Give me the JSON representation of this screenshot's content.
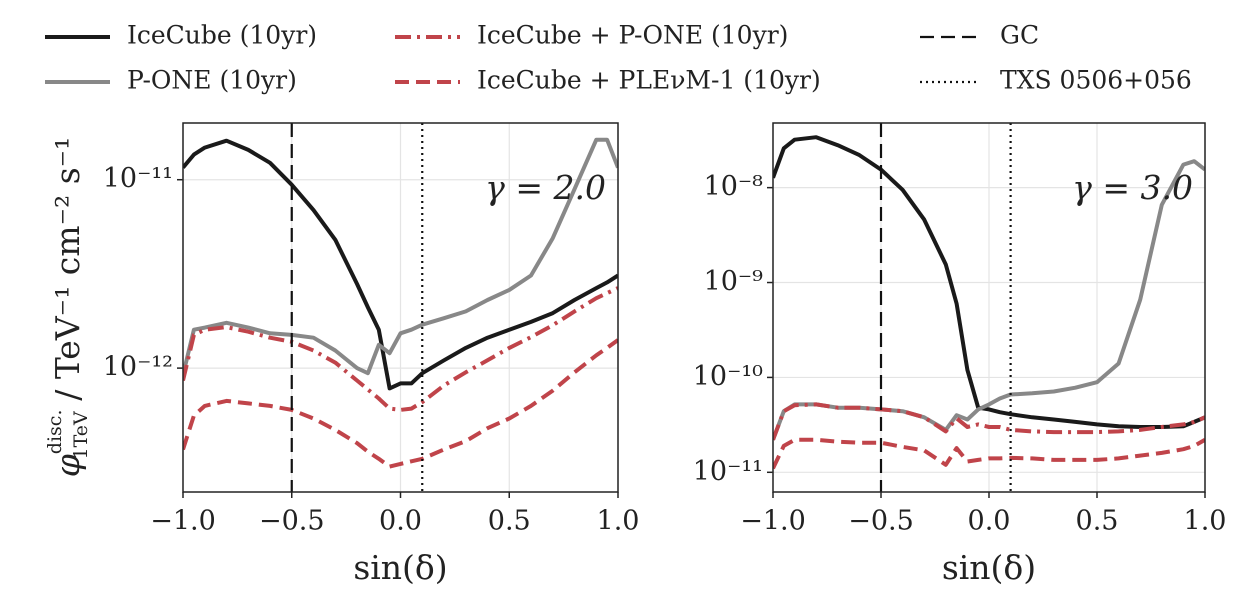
{
  "chart_data": [
    {
      "type": "line",
      "log_y": true,
      "grid": true,
      "ylabel": {
        "symbol": "φ",
        "superscript": "disc.",
        "subscript": "1TeV",
        "units": " / TeV⁻¹ cm⁻² s⁻¹"
      },
      "xlabel": "sin(δ)",
      "annotation": "γ = 2.0",
      "x": [
        -1.0,
        -0.95,
        -0.9,
        -0.8,
        -0.7,
        -0.6,
        -0.5,
        -0.4,
        -0.3,
        -0.2,
        -0.15,
        -0.1,
        -0.05,
        0.0,
        0.05,
        0.1,
        0.2,
        0.3,
        0.4,
        0.5,
        0.6,
        0.7,
        0.8,
        0.9,
        0.95,
        1.0
      ],
      "xlim": [
        -1,
        1
      ],
      "xticks": [
        {
          "value": -1,
          "label": "−1.0"
        },
        {
          "value": -0.5,
          "label": "−0.5"
        },
        {
          "value": 0,
          "label": "0.0"
        },
        0.5,
        {
          "value": 1,
          "label": "1.0"
        }
      ],
      "ylim": [
        2.2e-13,
        2e-11
      ],
      "yticks": [
        {
          "value": 1e-12,
          "label": "10⁻¹²"
        },
        {
          "value": 1e-11,
          "label": "10⁻¹¹"
        }
      ],
      "series": [
        {
          "name": "IceCube (10yr)",
          "color": "#1a1a1a",
          "style": "solid",
          "values": [
            1.16e-11,
            1.36e-11,
            1.48e-11,
            1.61e-11,
            1.44e-11,
            1.23e-11,
            9.4e-12,
            6.9e-12,
            4.8e-12,
            2.8e-12,
            2.1e-12,
            1.6e-12,
            7.8e-13,
            8.3e-13,
            8.3e-13,
            9.4e-13,
            1.1e-12,
            1.28e-12,
            1.45e-12,
            1.6e-12,
            1.76e-12,
            1.96e-12,
            2.3e-12,
            2.66e-12,
            2.85e-12,
            3.1e-12
          ]
        },
        {
          "name": "P-ONE (10yr)",
          "color": "#888888",
          "style": "solid",
          "values": [
            9.2e-13,
            1.6e-12,
            1.64e-12,
            1.74e-12,
            1.64e-12,
            1.53e-12,
            1.5e-12,
            1.45e-12,
            1.24e-12,
            1e-12,
            9.4e-13,
            1.33e-12,
            1.2e-12,
            1.53e-12,
            1.6e-12,
            1.7e-12,
            1.84e-12,
            2e-12,
            2.3e-12,
            2.6e-12,
            3.1e-12,
            4.9e-12,
            8.9e-12,
            1.63e-11,
            1.63e-11,
            1.16e-11
          ]
        },
        {
          "name": "IceCube + P-ONE (10yr)",
          "color": "#c0444a",
          "style": "dashdot",
          "values": [
            8.6e-13,
            1.5e-12,
            1.6e-12,
            1.65e-12,
            1.56e-12,
            1.45e-12,
            1.38e-12,
            1.24e-12,
            1.07e-12,
            8.6e-13,
            7.7e-13,
            6.9e-13,
            6.1e-13,
            6e-13,
            6.1e-13,
            6.6e-13,
            8.1e-13,
            9.5e-13,
            1.1e-12,
            1.28e-12,
            1.46e-12,
            1.69e-12,
            2e-12,
            2.35e-12,
            2.5e-12,
            2.66e-12
          ]
        },
        {
          "name": "IceCube + PLEνM-1 (10yr)",
          "color": "#c0444a",
          "style": "dashed",
          "values": [
            3.7e-13,
            5.6e-13,
            6.3e-13,
            6.7e-13,
            6.5e-13,
            6.3e-13,
            6e-13,
            5.4e-13,
            4.7e-13,
            4e-13,
            3.6e-13,
            3.3e-13,
            3e-13,
            3.1e-13,
            3.2e-13,
            3.3e-13,
            3.7e-13,
            4.1e-13,
            4.8e-13,
            5.4e-13,
            6.3e-13,
            7.6e-13,
            9.5e-13,
            1.17e-12,
            1.28e-12,
            1.41e-12
          ]
        }
      ],
      "vlines": [
        {
          "name": "GC",
          "x": -0.5,
          "style": "dashed"
        },
        {
          "name": "TXS 0506+056",
          "x": 0.1,
          "style": "dotted"
        }
      ]
    },
    {
      "type": "line",
      "log_y": true,
      "grid": true,
      "xlabel": "sin(δ)",
      "annotation": "γ = 3.0",
      "x": [
        -1.0,
        -0.95,
        -0.9,
        -0.8,
        -0.7,
        -0.6,
        -0.5,
        -0.4,
        -0.3,
        -0.2,
        -0.15,
        -0.1,
        -0.05,
        0.0,
        0.05,
        0.1,
        0.2,
        0.3,
        0.4,
        0.5,
        0.6,
        0.7,
        0.8,
        0.9,
        0.95,
        1.0
      ],
      "xlim": [
        -1,
        1
      ],
      "xticks": [
        {
          "value": -1,
          "label": "−1.0"
        },
        {
          "value": -0.5,
          "label": "−0.5"
        },
        {
          "value": 0,
          "label": "0.0"
        },
        0.5,
        {
          "value": 1,
          "label": "1.0"
        }
      ],
      "ylim": [
        6.2e-12,
        4.8e-08
      ],
      "yticks": [
        {
          "value": 1e-11,
          "label": "10⁻¹¹"
        },
        {
          "value": 1e-10,
          "label": "10⁻¹⁰"
        },
        {
          "value": 1e-09,
          "label": "10⁻⁹"
        },
        {
          "value": 1e-08,
          "label": "10⁻⁸"
        }
      ],
      "series": [
        {
          "color": "#1a1a1a",
          "style": "solid",
          "values": [
            1.27e-08,
            2.6e-08,
            3.2e-08,
            3.4e-08,
            2.8e-08,
            2.2e-08,
            1.55e-08,
            9.5e-09,
            4.6e-09,
            1.55e-09,
            6e-10,
            1.2e-10,
            4.8e-11,
            4.6e-11,
            4.3e-11,
            4.1e-11,
            3.8e-11,
            3.6e-11,
            3.4e-11,
            3.2e-11,
            3.05e-11,
            3e-11,
            3e-11,
            3.05e-11,
            3.4e-11,
            3.8e-11
          ]
        },
        {
          "color": "#888888",
          "style": "solid",
          "values": [
            2.2e-11,
            4.4e-11,
            5.2e-11,
            5.2e-11,
            4.8e-11,
            4.8e-11,
            4.6e-11,
            4.4e-11,
            3.8e-11,
            2.8e-11,
            4e-11,
            3.6e-11,
            4.6e-11,
            5.2e-11,
            6e-11,
            6.6e-11,
            6.8e-11,
            7.1e-11,
            7.8e-11,
            8.9e-11,
            1.4e-10,
            6.6e-10,
            6.6e-09,
            1.75e-08,
            1.9e-08,
            1.55e-08
          ]
        },
        {
          "color": "#c0444a",
          "style": "dashdot",
          "values": [
            2.2e-11,
            4.4e-11,
            5.1e-11,
            5.2e-11,
            4.8e-11,
            4.8e-11,
            4.6e-11,
            4.4e-11,
            3.8e-11,
            2.7e-11,
            3.7e-11,
            3e-11,
            3.2e-11,
            3e-11,
            3e-11,
            2.8e-11,
            2.7e-11,
            2.65e-11,
            2.65e-11,
            2.65e-11,
            2.7e-11,
            2.8e-11,
            3e-11,
            3.2e-11,
            3.4e-11,
            3.8e-11
          ]
        },
        {
          "color": "#c0444a",
          "style": "dashed",
          "values": [
            1.1e-11,
            1.9e-11,
            2.2e-11,
            2.2e-11,
            2.1e-11,
            2.05e-11,
            2.05e-11,
            1.85e-11,
            1.7e-11,
            1.2e-11,
            1.8e-11,
            1.3e-11,
            1.35e-11,
            1.4e-11,
            1.4e-11,
            1.42e-11,
            1.4e-11,
            1.35e-11,
            1.35e-11,
            1.35e-11,
            1.4e-11,
            1.5e-11,
            1.6e-11,
            1.75e-11,
            1.9e-11,
            2.2e-11
          ]
        }
      ],
      "vlines": [
        {
          "x": -0.5,
          "style": "dashed"
        },
        {
          "x": 0.1,
          "style": "dotted"
        }
      ]
    }
  ]
}
